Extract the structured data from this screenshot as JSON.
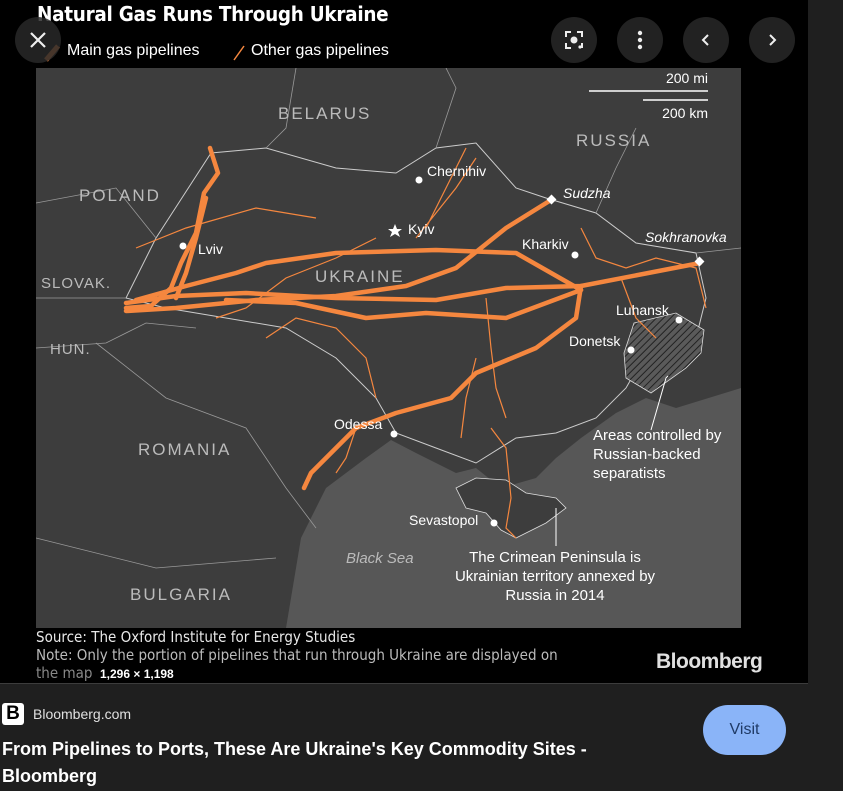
{
  "image": {
    "title": "Natural Gas Runs Through Ukraine",
    "legend": {
      "main": "Main gas pipelines",
      "other": "Other gas pipelines"
    },
    "scale": {
      "mi": "200 mi",
      "km": "200 km"
    },
    "countries": {
      "belarus": "BELARUS",
      "poland": "POLAND",
      "russia": "RUSSIA",
      "slovakia": "SLOVAK.",
      "hungary": "HUN.",
      "romania": "ROMANIA",
      "bulgaria": "BULGARIA",
      "ukraine": "UKRAINE"
    },
    "sea": "Black Sea",
    "cities": {
      "chernihiv": "Chernihiv",
      "kyiv": "Kyiv",
      "lviv": "Lviv",
      "kharkiv": "Kharkiv",
      "sudzha": "Sudzha",
      "sokhranovka": "Sokhranovka",
      "luhansk": "Luhansk",
      "donetsk": "Donetsk",
      "odessa": "Odessa",
      "sevastopol": "Sevastopol"
    },
    "annotations": {
      "separatists": [
        "Areas controlled by",
        "Russian-backed",
        "separatists"
      ],
      "crimea": [
        "The Crimean Peninsula is",
        "Ukrainian territory annexed by",
        "Russia in 2014"
      ]
    },
    "source": "Source: The Oxford Institute for Energy Studies",
    "note": "Note: Only the portion of pipelines that run through Ukraine are displayed on",
    "note_cont": "the map",
    "brand": "Bloomberg",
    "colors": {
      "pipeline": "#f5873f",
      "land": "#3d3d3d",
      "sea": "#575757"
    }
  },
  "dimensions": "1,296 × 1,198",
  "controls": {
    "close": "close-icon",
    "lens": "lens-icon",
    "more": "more-vert-icon",
    "prev": "chevron-left-icon",
    "next": "chevron-right-icon"
  },
  "result": {
    "site": "Bloomberg.com",
    "title": "From Pipelines to Ports, These Are Ukraine's Key Commodity Sites - Bloomberg",
    "visit_label": "Visit"
  }
}
